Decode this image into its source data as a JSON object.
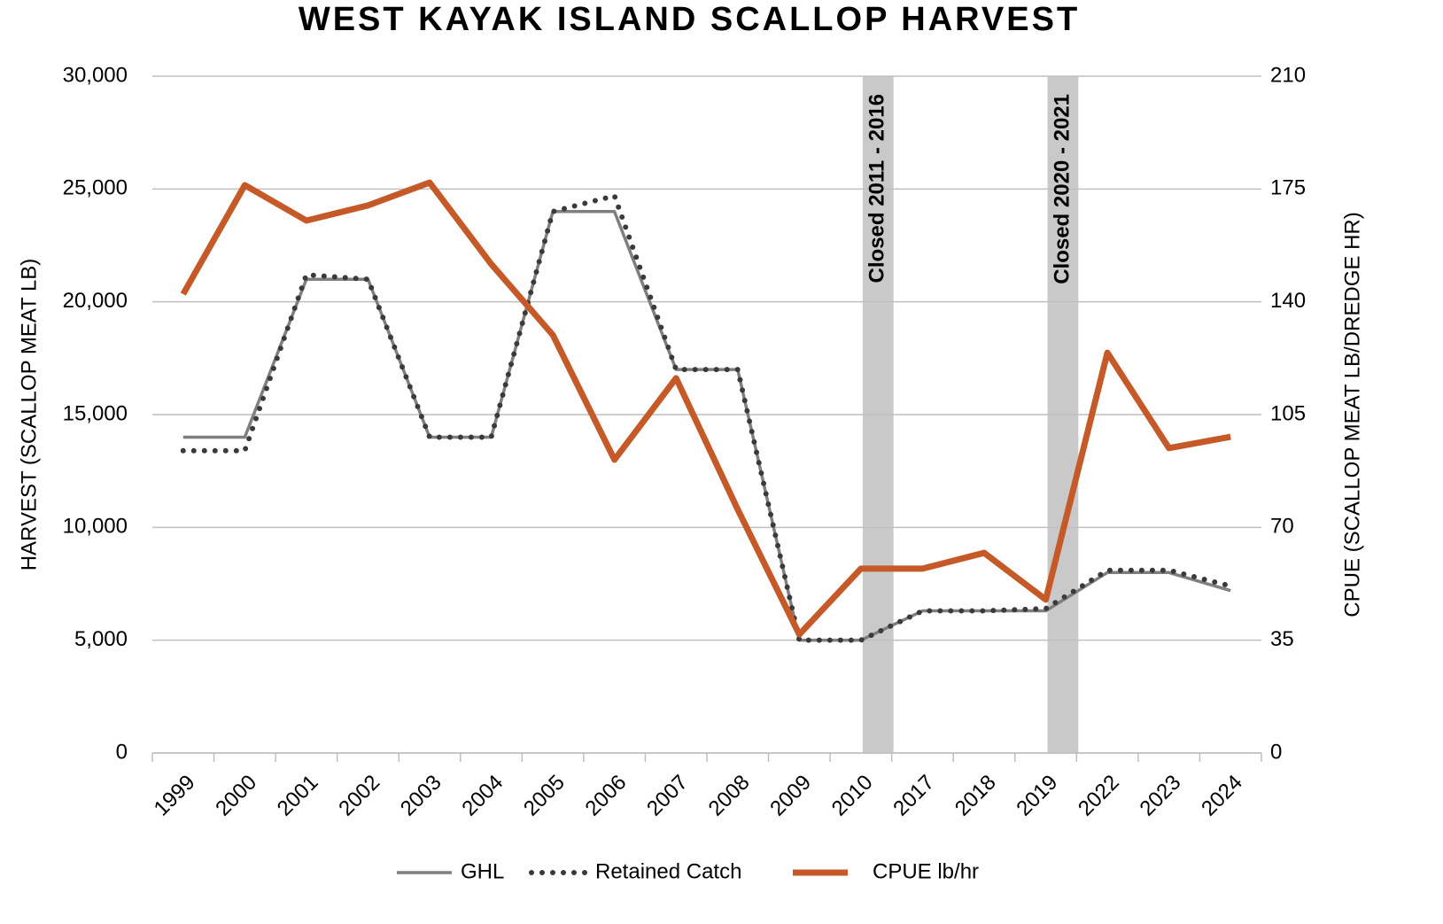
{
  "chart_data": {
    "type": "line",
    "title": "WEST KAYAK ISLAND SCALLOP HARVEST",
    "y_label": "HARVEST (SCALLOP MEAT LB)",
    "y2_label": "CPUE (SCALLOP MEAT LB/DREDGE HR)",
    "categories": [
      "1999",
      "2000",
      "2001",
      "2002",
      "2003",
      "2004",
      "2005",
      "2006",
      "2007",
      "2008",
      "2009",
      "2010",
      "2017",
      "2018",
      "2019",
      "2022",
      "2023",
      "2024"
    ],
    "series": [
      {
        "name": "GHL",
        "color": "#7f7f7f",
        "style": "solid",
        "values": [
          14000,
          14000,
          21000,
          21000,
          14000,
          14000,
          24000,
          24000,
          17000,
          17000,
          5000,
          5000,
          6300,
          6300,
          6300,
          8000,
          8000,
          7200
        ]
      },
      {
        "name": "Retained Catch",
        "color": "#3a3a3a",
        "style": "dotted",
        "values": [
          13400,
          13400,
          21200,
          21000,
          14000,
          14000,
          24000,
          24700,
          17000,
          17000,
          5000,
          5000,
          6300,
          6300,
          6400,
          8100,
          8100,
          7400
        ]
      },
      {
        "name": "CPUE lb/hr",
        "color": "#c55a28",
        "style": "solid",
        "axis": "y2",
        "values": [
          142.4,
          176.2,
          165.2,
          169.9,
          177,
          151.7,
          129.7,
          91,
          116.3,
          75.6,
          36.8,
          57.2,
          57.2,
          62.1,
          47.6,
          124.2,
          94.6,
          98.1
        ]
      }
    ],
    "annotations": [
      {
        "text": "Closed 2011 - 2016",
        "between": [
          "2010",
          "2017"
        ]
      },
      {
        "text": "Closed 2020 - 2021",
        "between": [
          "2019",
          "2022"
        ]
      }
    ],
    "ylim": [
      0,
      30000
    ],
    "yticks": [
      0,
      {
        "value": 5000,
        "label": "5,000"
      },
      {
        "value": 10000,
        "label": "10,000"
      },
      {
        "value": 15000,
        "label": "15,000"
      },
      {
        "value": 20000,
        "label": "20,000"
      },
      {
        "value": 25000,
        "label": "25,000"
      },
      {
        "value": 30000,
        "label": "30,000"
      }
    ],
    "y2lim": [
      0,
      210
    ],
    "y2ticks": [
      0,
      35,
      70,
      105,
      140,
      175,
      210
    ],
    "grid": true,
    "legend": "bottom"
  }
}
